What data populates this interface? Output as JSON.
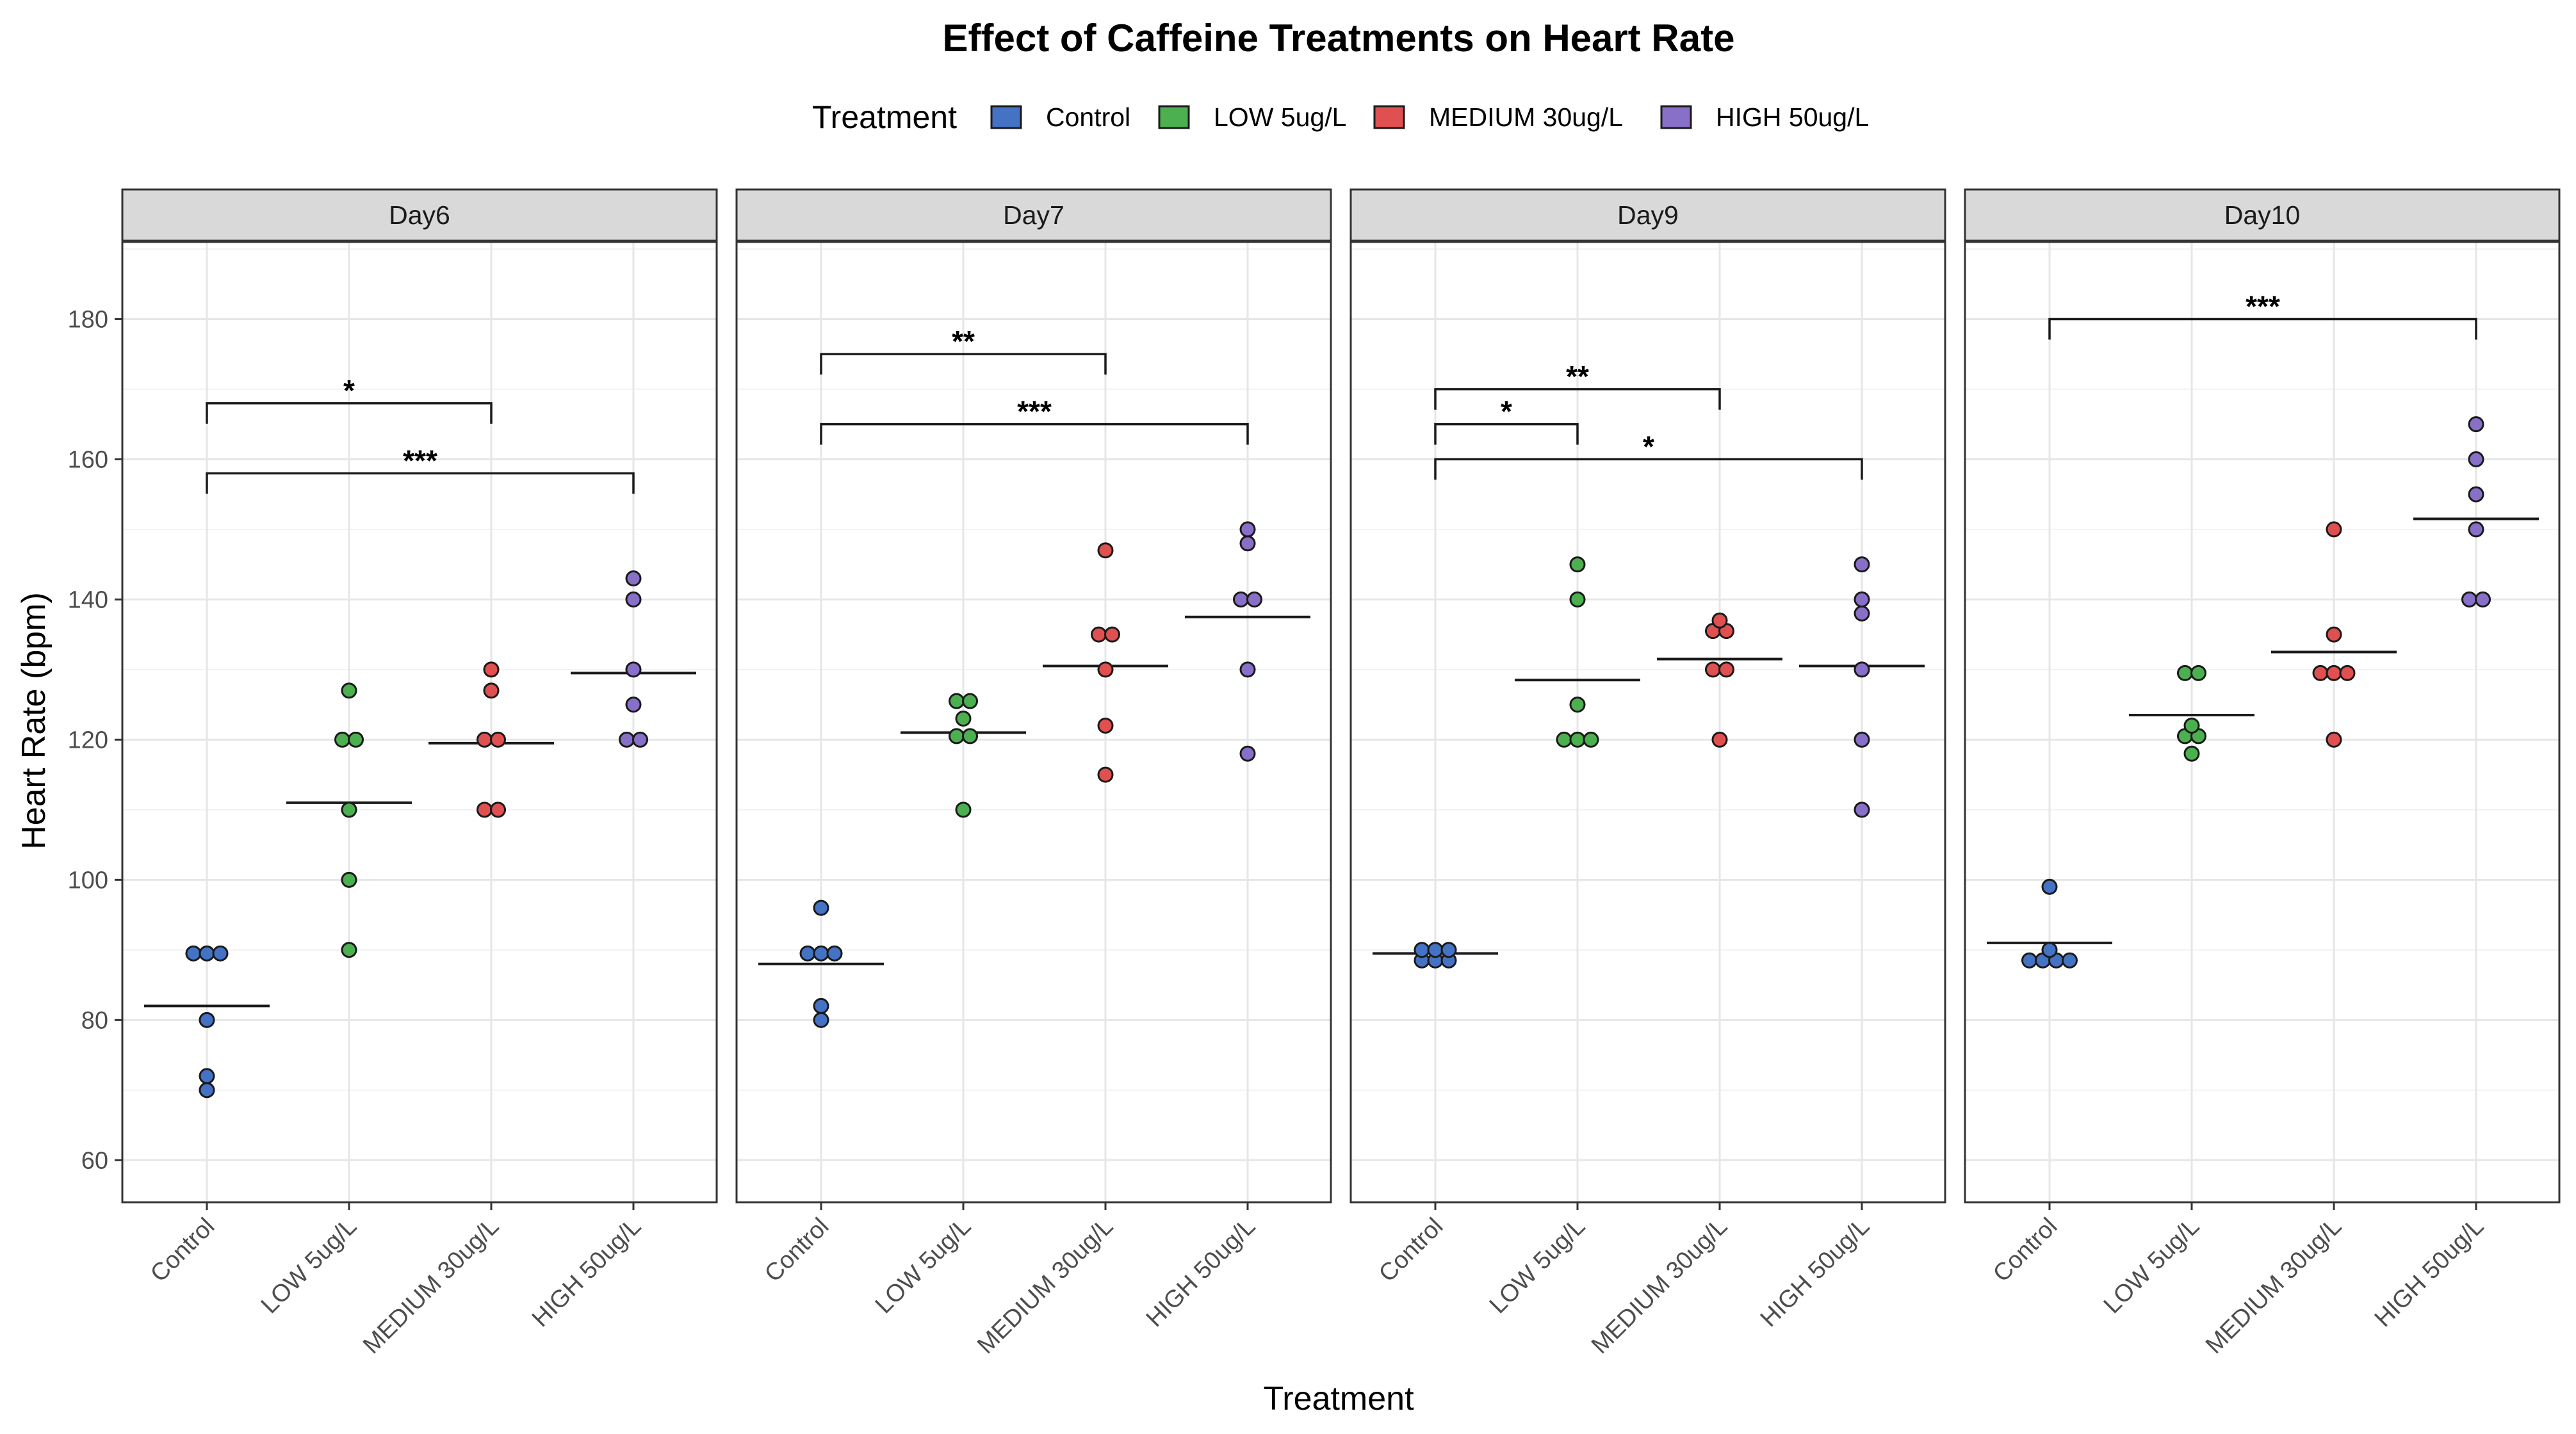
{
  "chart_data": {
    "type": "scatter",
    "title": "Effect of Caffeine Treatments on Heart Rate",
    "xlabel": "Treatment",
    "ylabel": "Heart Rate (bpm)",
    "ylim": [
      54,
      191
    ],
    "yticks": [
      60,
      80,
      100,
      120,
      140,
      160,
      180
    ],
    "grid": true,
    "legend": {
      "title": "Treatment",
      "placement": "top",
      "entries": [
        {
          "name": "Control",
          "color": "#4472c4"
        },
        {
          "name": "LOW 5ug/L",
          "color": "#4caf50"
        },
        {
          "name": "MEDIUM 30ug/L",
          "color": "#e05050"
        },
        {
          "name": "HIGH 50ug/L",
          "color": "#8870c8"
        }
      ]
    },
    "categories": [
      "Control",
      "LOW 5ug/L",
      "MEDIUM 30ug/L",
      "HIGH 50ug/L"
    ],
    "facets": [
      {
        "label": "Day6",
        "series": [
          {
            "name": "Control",
            "values": [
              70,
              72,
              80,
              89.5,
              89.5,
              89.5
            ],
            "mean": 82
          },
          {
            "name": "LOW 5ug/L",
            "values": [
              90,
              100,
              110,
              120,
              120,
              127
            ],
            "mean": 111
          },
          {
            "name": "MEDIUM 30ug/L",
            "values": [
              110,
              110,
              120,
              120,
              127,
              130
            ],
            "mean": 119.5
          },
          {
            "name": "HIGH 50ug/L",
            "values": [
              120,
              120,
              125,
              130,
              140,
              143
            ],
            "mean": 129.5
          }
        ],
        "comparisons": [
          {
            "from": "Control",
            "to": "MEDIUM 30ug/L",
            "y": 168,
            "label": "*"
          },
          {
            "from": "Control",
            "to": "HIGH 50ug/L",
            "y": 158,
            "label": "***"
          }
        ]
      },
      {
        "label": "Day7",
        "series": [
          {
            "name": "Control",
            "values": [
              80,
              82,
              89.5,
              89.5,
              89.5,
              96
            ],
            "mean": 88
          },
          {
            "name": "LOW 5ug/L",
            "values": [
              110,
              120.5,
              120.5,
              123,
              125.5,
              125.5
            ],
            "mean": 121
          },
          {
            "name": "MEDIUM 30ug/L",
            "values": [
              115,
              122,
              130,
              135,
              135,
              147
            ],
            "mean": 130.5
          },
          {
            "name": "HIGH 50ug/L",
            "values": [
              118,
              130,
              140,
              140,
              148,
              150
            ],
            "mean": 137.5
          }
        ],
        "comparisons": [
          {
            "from": "Control",
            "to": "MEDIUM 30ug/L",
            "y": 175,
            "label": "**"
          },
          {
            "from": "Control",
            "to": "HIGH 50ug/L",
            "y": 165,
            "label": "***"
          }
        ]
      },
      {
        "label": "Day9",
        "series": [
          {
            "name": "Control",
            "values": [
              88.5,
              88.5,
              88.5,
              90,
              90,
              90
            ],
            "mean": 89.5
          },
          {
            "name": "LOW 5ug/L",
            "values": [
              120,
              120,
              120,
              125,
              140,
              145
            ],
            "mean": 128.5
          },
          {
            "name": "MEDIUM 30ug/L",
            "values": [
              120,
              130,
              130,
              135.5,
              135.5,
              137
            ],
            "mean": 131.5
          },
          {
            "name": "HIGH 50ug/L",
            "values": [
              110,
              120,
              130,
              138,
              140,
              145
            ],
            "mean": 130.5
          }
        ],
        "comparisons": [
          {
            "from": "Control",
            "to": "MEDIUM 30ug/L",
            "y": 170,
            "label": "**"
          },
          {
            "from": "Control",
            "to": "LOW 5ug/L",
            "y": 165,
            "label": "*"
          },
          {
            "from": "Control",
            "to": "HIGH 50ug/L",
            "y": 160,
            "label": "*"
          }
        ]
      },
      {
        "label": "Day10",
        "series": [
          {
            "name": "Control",
            "values": [
              88.5,
              88.5,
              88.5,
              88.5,
              90,
              99
            ],
            "mean": 91
          },
          {
            "name": "LOW 5ug/L",
            "values": [
              118,
              120.5,
              120.5,
              122,
              129.5,
              129.5
            ],
            "mean": 123.5
          },
          {
            "name": "MEDIUM 30ug/L",
            "values": [
              120,
              129.5,
              129.5,
              129.5,
              135,
              150
            ],
            "mean": 132.5
          },
          {
            "name": "HIGH 50ug/L",
            "values": [
              140,
              140,
              150,
              155,
              160,
              165
            ],
            "mean": 151.5
          }
        ],
        "comparisons": [
          {
            "from": "Control",
            "to": "HIGH 50ug/L",
            "y": 180,
            "label": "***"
          }
        ]
      }
    ]
  }
}
